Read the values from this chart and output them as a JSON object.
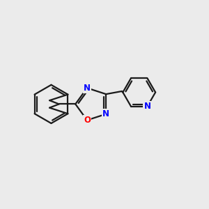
{
  "bg_color": "#ebebeb",
  "bond_color": "#1a1a1a",
  "N_color": "#0000ff",
  "O_color": "#ff0000",
  "bond_width": 1.6,
  "font_size_atom": 8.5,
  "xlim": [
    0,
    10
  ],
  "ylim": [
    2,
    8
  ]
}
